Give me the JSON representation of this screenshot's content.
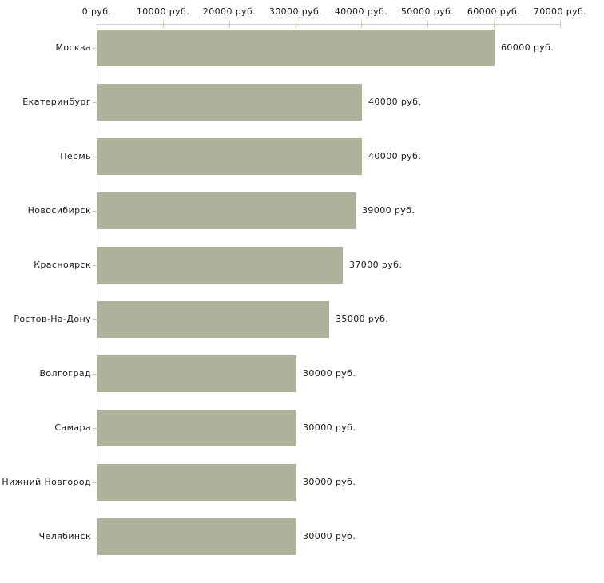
{
  "chart_data": {
    "type": "bar",
    "orientation": "horizontal",
    "title": "",
    "xlabel": "",
    "ylabel": "",
    "unit": "руб.",
    "xlim": [
      0,
      70000
    ],
    "x_ticks": [
      0,
      10000,
      20000,
      30000,
      40000,
      50000,
      60000,
      70000
    ],
    "x_tick_labels": [
      "0 руб.",
      "10000 руб.",
      "20000 руб.",
      "30000 руб.",
      "40000 руб.",
      "50000 руб.",
      "60000 руб.",
      "70000 руб."
    ],
    "categories": [
      "Москва",
      "Екатеринбург",
      "Пермь",
      "Новосибирск",
      "Красноярск",
      "Ростов-На-Дону",
      "Волгоград",
      "Самара",
      "Нижний Новгород",
      "Челябинск"
    ],
    "values": [
      60000,
      40000,
      40000,
      39000,
      37000,
      35000,
      30000,
      30000,
      30000,
      30000
    ],
    "value_labels": [
      "60000 руб.",
      "40000 руб.",
      "40000 руб.",
      "39000 руб.",
      "37000 руб.",
      "35000 руб.",
      "30000 руб.",
      "30000 руб.",
      "30000 руб.",
      "30000 руб."
    ],
    "grid": false,
    "legend": false,
    "bar_color": "#acb39a",
    "axis_line_color": "#cfcfcf",
    "tick_mark_color": "#c9c9a3",
    "text_color": "#1a1a1a",
    "background_color": "#ffffff"
  }
}
